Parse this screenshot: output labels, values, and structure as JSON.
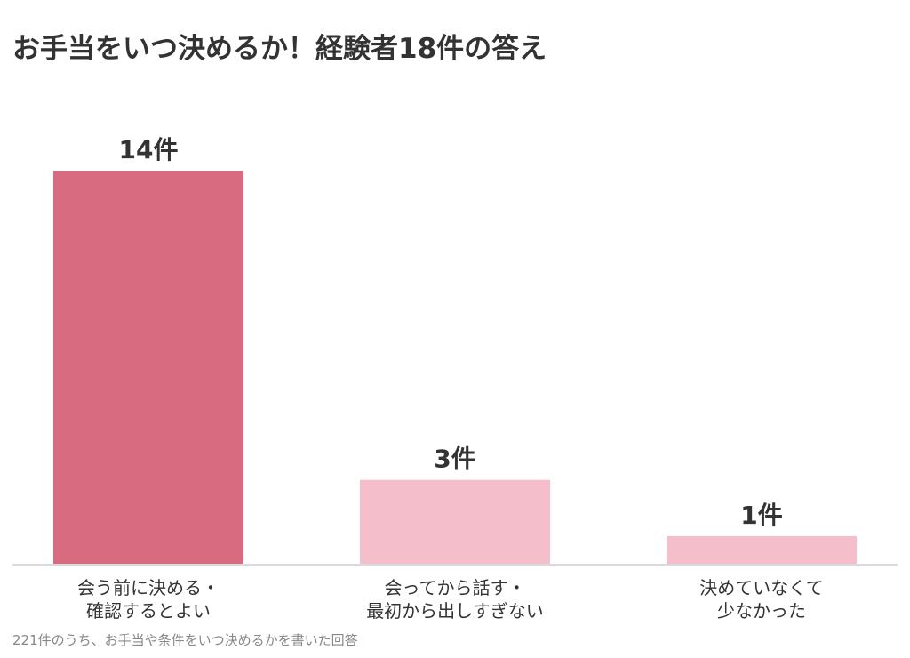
{
  "chart_data": {
    "type": "bar",
    "title": "お手当をいつ決めるか！経験者18件の答え",
    "categories": [
      [
        "会う前に決める・",
        "確認するとよい"
      ],
      [
        "会ってから話す・",
        "最初から出しすぎない"
      ],
      [
        "決めていなくて",
        "少なかった"
      ]
    ],
    "values": [
      14,
      3,
      1
    ],
    "value_labels": [
      "14件",
      "3件",
      "1件"
    ],
    "unit": "件",
    "ylim": [
      0,
      14
    ],
    "grid": false,
    "legend": "none",
    "colors": [
      "#d96b80",
      "#f4bfca",
      "#f4bfca"
    ],
    "baseline_color": "#d9d9df",
    "note": "221件のうち、お手当や条件をいつ決めるかを書いた回答"
  }
}
